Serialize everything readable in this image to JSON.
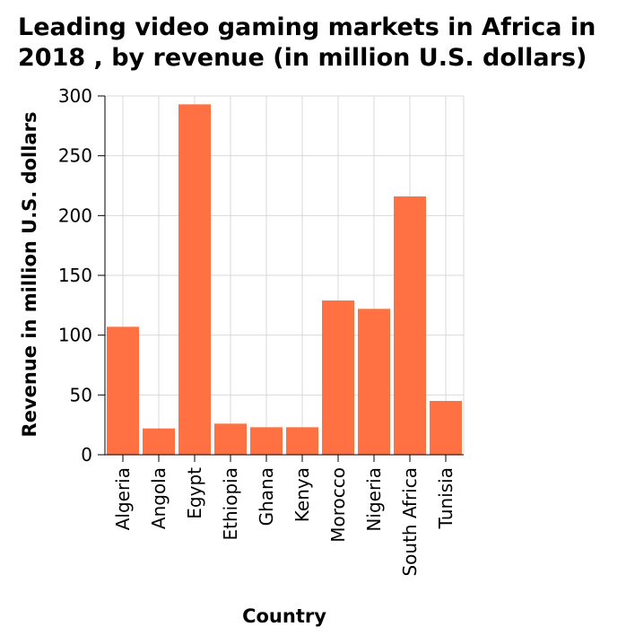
{
  "chart_data": {
    "type": "bar",
    "title_lines": [
      "Leading video gaming markets in Africa in",
      "2018 , by revenue (in million U.S. dollars)"
    ],
    "xlabel": "Country",
    "ylabel": "Revenue in million U.S. dollars",
    "categories": [
      "Algeria",
      "Angola",
      "Egypt",
      "Ethiopia",
      "Ghana",
      "Kenya",
      "Morocco",
      "Nigeria",
      "South Africa",
      "Tunisia"
    ],
    "values": [
      107,
      22,
      293,
      26,
      23,
      23,
      129,
      122,
      216,
      45
    ],
    "ylim": [
      0,
      300
    ],
    "yticks": [
      0,
      50,
      100,
      150,
      200,
      250,
      300
    ],
    "bar_color": "#ff7043",
    "grid": true,
    "legend": "none"
  }
}
